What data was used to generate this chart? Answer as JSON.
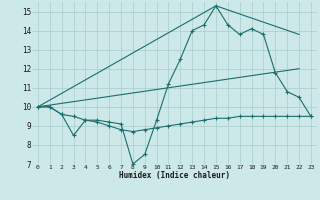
{
  "xlabel": "Humidex (Indice chaleur)",
  "xlim": [
    -0.5,
    23.5
  ],
  "ylim": [
    7,
    15.5
  ],
  "yticks": [
    7,
    8,
    9,
    10,
    11,
    12,
    13,
    14,
    15
  ],
  "xticks": [
    0,
    1,
    2,
    3,
    4,
    5,
    6,
    7,
    8,
    9,
    10,
    11,
    12,
    13,
    14,
    15,
    16,
    17,
    18,
    19,
    20,
    21,
    22,
    23
  ],
  "bg_color": "#cce8e8",
  "grid_color": "#b0d0d0",
  "line_color": "#1a6e6e",
  "line1_x": [
    0,
    1,
    2,
    3,
    4,
    5,
    6,
    7,
    8,
    9,
    10,
    11,
    12,
    13,
    14,
    15,
    16,
    17,
    18,
    19,
    20,
    21,
    22,
    23
  ],
  "line1_y": [
    10,
    10,
    9.6,
    8.5,
    9.3,
    9.3,
    9.2,
    9.1,
    7.0,
    7.5,
    9.3,
    11.2,
    12.5,
    14.0,
    14.3,
    15.3,
    14.3,
    13.8,
    14.1,
    13.8,
    11.8,
    10.8,
    10.5,
    9.5
  ],
  "line2_x": [
    0,
    1,
    2,
    3,
    4,
    5,
    6,
    7,
    8,
    9,
    10,
    11,
    12,
    13,
    14,
    15,
    16,
    17,
    18,
    19,
    20,
    21,
    22,
    23
  ],
  "line2_y": [
    10,
    10,
    9.6,
    9.5,
    9.3,
    9.2,
    9.0,
    8.8,
    8.7,
    8.8,
    8.9,
    9.0,
    9.1,
    9.2,
    9.3,
    9.4,
    9.4,
    9.5,
    9.5,
    9.5,
    9.5,
    9.5,
    9.5,
    9.5
  ],
  "line3_x": [
    0,
    15,
    22
  ],
  "line3_y": [
    10,
    15.3,
    13.8
  ],
  "line4_x": [
    0,
    22
  ],
  "line4_y": [
    10,
    12.0
  ]
}
